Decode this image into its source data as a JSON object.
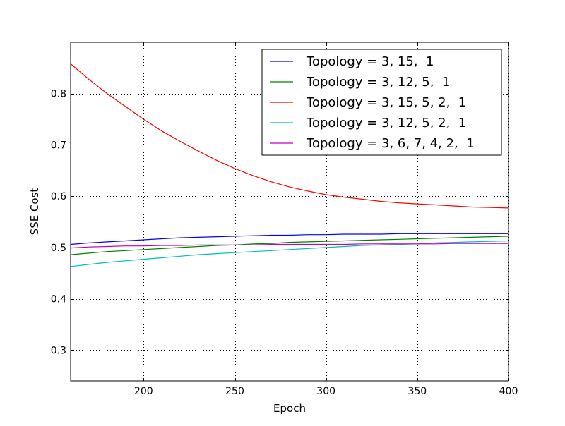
{
  "chart_data": {
    "type": "line",
    "title": "",
    "xlabel": "Epoch",
    "ylabel": "SSE Cost",
    "xlim": [
      160,
      400
    ],
    "ylim": [
      0.24,
      0.9
    ],
    "xticks": [
      200,
      250,
      300,
      350,
      400
    ],
    "yticks": [
      0.3,
      0.4,
      0.5,
      0.6,
      0.7,
      0.8
    ],
    "xtick_labels": [
      "200",
      "250",
      "300",
      "350",
      "400"
    ],
    "ytick_labels": [
      "0.3",
      "0.4",
      "0.5",
      "0.6",
      "0.7",
      "0.8"
    ],
    "grid": true,
    "legend_position": "top-right",
    "x": [
      160,
      170,
      180,
      190,
      200,
      210,
      220,
      230,
      240,
      250,
      260,
      270,
      280,
      290,
      300,
      310,
      320,
      330,
      340,
      350,
      360,
      370,
      380,
      390,
      400
    ],
    "series": [
      {
        "name": "Topology = 3, 15,  1",
        "color": "#0000ff",
        "values": [
          0.506,
          0.509,
          0.511,
          0.513,
          0.515,
          0.517,
          0.519,
          0.52,
          0.521,
          0.522,
          0.523,
          0.524,
          0.524,
          0.525,
          0.525,
          0.526,
          0.526,
          0.526,
          0.527,
          0.527,
          0.527,
          0.527,
          0.527,
          0.527,
          0.527
        ]
      },
      {
        "name": "Topology = 3, 12, 5,  1",
        "color": "#008000",
        "values": [
          0.486,
          0.489,
          0.492,
          0.494,
          0.496,
          0.498,
          0.5,
          0.502,
          0.504,
          0.505,
          0.507,
          0.508,
          0.51,
          0.511,
          0.512,
          0.513,
          0.514,
          0.515,
          0.516,
          0.517,
          0.518,
          0.519,
          0.52,
          0.521,
          0.522
        ]
      },
      {
        "name": "Topology = 3, 15, 5, 2,  1",
        "color": "#ff0000",
        "values": [
          0.858,
          0.828,
          0.8,
          0.775,
          0.75,
          0.727,
          0.707,
          0.688,
          0.67,
          0.654,
          0.64,
          0.628,
          0.618,
          0.61,
          0.603,
          0.598,
          0.594,
          0.59,
          0.587,
          0.585,
          0.583,
          0.581,
          0.579,
          0.578,
          0.577
        ]
      },
      {
        "name": "Topology = 3, 12, 5, 2,  1",
        "color": "#00bfbf",
        "values": [
          0.463,
          0.467,
          0.471,
          0.474,
          0.477,
          0.48,
          0.483,
          0.486,
          0.488,
          0.49,
          0.492,
          0.494,
          0.496,
          0.498,
          0.5,
          0.502,
          0.504,
          0.505,
          0.506,
          0.507,
          0.509,
          0.51,
          0.511,
          0.512,
          0.513
        ]
      },
      {
        "name": "Topology = 3, 6, 7, 4, 2,  1",
        "color": "#bf00bf",
        "values": [
          0.499,
          0.501,
          0.502,
          0.503,
          0.503,
          0.504,
          0.504,
          0.505,
          0.505,
          0.505,
          0.505,
          0.506,
          0.506,
          0.506,
          0.506,
          0.506,
          0.507,
          0.507,
          0.507,
          0.507,
          0.507,
          0.508,
          0.508,
          0.508,
          0.508
        ]
      }
    ]
  }
}
